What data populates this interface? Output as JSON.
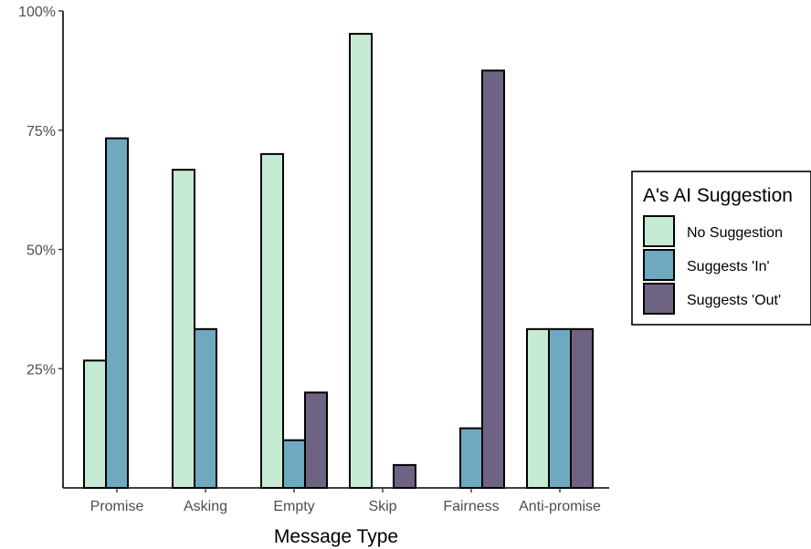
{
  "chart_data": {
    "type": "bar",
    "categories": [
      "Promise",
      "Asking",
      "Empty",
      "Skip",
      "Fairness",
      "Anti-promise"
    ],
    "series": [
      {
        "name": "No Suggestion",
        "color": "#c6ead3",
        "values": [
          26.7,
          66.7,
          70.0,
          95.2,
          null,
          33.3
        ]
      },
      {
        "name": "Suggests 'In'",
        "color": "#6ea9c0",
        "values": [
          73.3,
          33.3,
          10.0,
          null,
          12.5,
          33.3
        ]
      },
      {
        "name": "Suggests 'Out'",
        "color": "#6e6383",
        "values": [
          null,
          null,
          20.0,
          4.8,
          87.5,
          33.3
        ]
      }
    ],
    "xlabel": "Message Type",
    "ylabel": "",
    "ylim": [
      0,
      100
    ],
    "yticks": [
      25,
      50,
      75,
      100
    ],
    "ytick_labels": [
      "25%",
      "50%",
      "75%",
      "100%"
    ],
    "legend": {
      "title": "A's AI Suggestion",
      "position": "right"
    },
    "grid": false
  }
}
